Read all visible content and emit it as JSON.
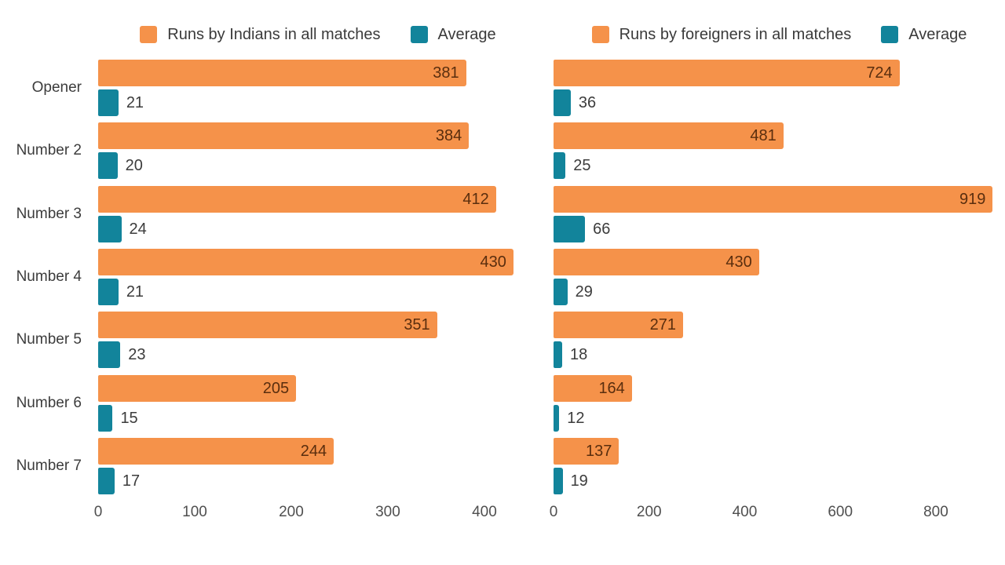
{
  "accent_colors": {
    "runs": "#f5924a",
    "average": "#12849b"
  },
  "chart_data": [
    {
      "type": "bar",
      "orientation": "horizontal",
      "title": "",
      "categories": [
        "Opener",
        "Number 2",
        "Number 3",
        "Number 4",
        "Number 5",
        "Number 6",
        "Number 7"
      ],
      "series": [
        {
          "name": "Runs by Indians in all matches",
          "color": "#f5924a",
          "values": [
            381,
            384,
            412,
            430,
            351,
            205,
            244
          ]
        },
        {
          "name": "Average",
          "color": "#12849b",
          "values": [
            21,
            20,
            24,
            21,
            23,
            15,
            17
          ]
        }
      ],
      "xlabel": "",
      "ylabel": "",
      "xlim": [
        0,
        435
      ],
      "xticks": [
        0,
        100,
        200,
        300,
        400
      ],
      "grid": false,
      "legend_position": "top"
    },
    {
      "type": "bar",
      "orientation": "horizontal",
      "title": "",
      "categories": [
        "Opener",
        "Number 2",
        "Number 3",
        "Number 4",
        "Number 5",
        "Number 6",
        "Number 7"
      ],
      "series": [
        {
          "name": "Runs by foreigners in all matches",
          "color": "#f5924a",
          "values": [
            724,
            481,
            919,
            430,
            271,
            164,
            137
          ]
        },
        {
          "name": "Average",
          "color": "#12849b",
          "values": [
            36,
            25,
            66,
            29,
            18,
            12,
            19
          ]
        }
      ],
      "xlabel": "",
      "ylabel": "",
      "xlim": [
        0,
        920
      ],
      "xticks": [
        0,
        200,
        400,
        600,
        800
      ],
      "grid": false,
      "legend_position": "top"
    }
  ]
}
